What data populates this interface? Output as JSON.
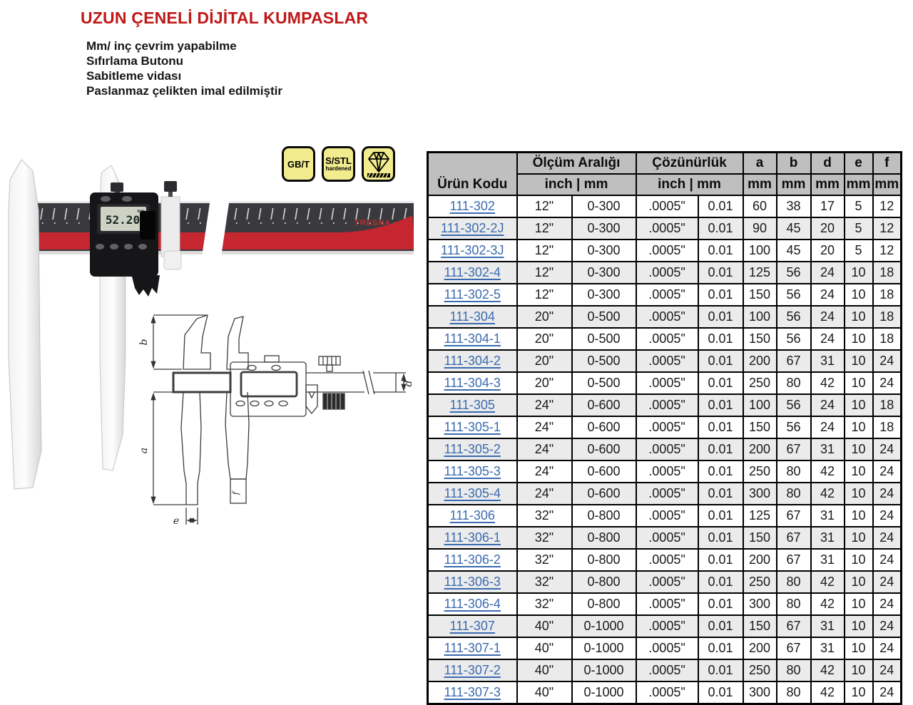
{
  "page": {
    "title": "UZUN ÇENELİ DİJİTAL KUMPASLAR",
    "features": [
      "Mm/ inç çevrim yapabilme",
      "Sıfırlama Butonu",
      "Sabitleme vidası",
      "Paslanmaz çelikten imal edilmiştir"
    ]
  },
  "badges": {
    "gbt": "GB/T",
    "sstl_line1": "S/STL",
    "sstl_line2": "hardened",
    "diamond_icon": "diamond"
  },
  "caliper": {
    "display_value": "52.20",
    "display_unit": "mm",
    "brand": "TRESNA"
  },
  "drawing": {
    "labels": {
      "a": "a",
      "b": "b",
      "d": "d",
      "e": "e",
      "f": "f"
    }
  },
  "table": {
    "header": {
      "product_code": "Ürün Kodu",
      "range": "Ölçüm Aralığı",
      "resolution": "Çözünürlük",
      "range_units": "inch | mm",
      "resolution_units": "inch | mm",
      "dims": [
        "a",
        "b",
        "d",
        "e",
        "f"
      ],
      "dim_unit": "mm"
    },
    "rows": [
      [
        "111-302",
        "12\"",
        "0-300",
        ".0005\"",
        "0.01",
        "60",
        "38",
        "17",
        "5",
        "12"
      ],
      [
        "111-302-2J",
        "12\"",
        "0-300",
        ".0005\"",
        "0.01",
        "90",
        "45",
        "20",
        "5",
        "12"
      ],
      [
        "111-302-3J",
        "12\"",
        "0-300",
        ".0005\"",
        "0.01",
        "100",
        "45",
        "20",
        "5",
        "12"
      ],
      [
        "111-302-4",
        "12\"",
        "0-300",
        ".0005\"",
        "0.01",
        "125",
        "56",
        "24",
        "10",
        "18"
      ],
      [
        "111-302-5",
        "12\"",
        "0-300",
        ".0005\"",
        "0.01",
        "150",
        "56",
        "24",
        "10",
        "18"
      ],
      [
        "111-304",
        "20\"",
        "0-500",
        ".0005\"",
        "0.01",
        "100",
        "56",
        "24",
        "10",
        "18"
      ],
      [
        "111-304-1",
        "20\"",
        "0-500",
        ".0005\"",
        "0.01",
        "150",
        "56",
        "24",
        "10",
        "18"
      ],
      [
        "111-304-2",
        "20\"",
        "0-500",
        ".0005\"",
        "0.01",
        "200",
        "67",
        "31",
        "10",
        "24"
      ],
      [
        "111-304-3",
        "20\"",
        "0-500",
        ".0005\"",
        "0.01",
        "250",
        "80",
        "42",
        "10",
        "24"
      ],
      [
        "111-305",
        "24\"",
        "0-600",
        ".0005\"",
        "0.01",
        "100",
        "56",
        "24",
        "10",
        "18"
      ],
      [
        "111-305-1",
        "24\"",
        "0-600",
        ".0005\"",
        "0.01",
        "150",
        "56",
        "24",
        "10",
        "18"
      ],
      [
        "111-305-2",
        "24\"",
        "0-600",
        ".0005\"",
        "0.01",
        "200",
        "67",
        "31",
        "10",
        "24"
      ],
      [
        "111-305-3",
        "24\"",
        "0-600",
        ".0005\"",
        "0.01",
        "250",
        "80",
        "42",
        "10",
        "24"
      ],
      [
        "111-305-4",
        "24\"",
        "0-600",
        ".0005\"",
        "0.01",
        "300",
        "80",
        "42",
        "10",
        "24"
      ],
      [
        "111-306",
        "32\"",
        "0-800",
        ".0005\"",
        "0.01",
        "125",
        "67",
        "31",
        "10",
        "24"
      ],
      [
        "111-306-1",
        "32\"",
        "0-800",
        ".0005\"",
        "0.01",
        "150",
        "67",
        "31",
        "10",
        "24"
      ],
      [
        "111-306-2",
        "32\"",
        "0-800",
        ".0005\"",
        "0.01",
        "200",
        "67",
        "31",
        "10",
        "24"
      ],
      [
        "111-306-3",
        "32\"",
        "0-800",
        ".0005\"",
        "0.01",
        "250",
        "80",
        "42",
        "10",
        "24"
      ],
      [
        "111-306-4",
        "32\"",
        "0-800",
        ".0005\"",
        "0.01",
        "300",
        "80",
        "42",
        "10",
        "24"
      ],
      [
        "111-307",
        "40\"",
        "0-1000",
        ".0005\"",
        "0.01",
        "150",
        "67",
        "31",
        "10",
        "24"
      ],
      [
        "111-307-1",
        "40\"",
        "0-1000",
        ".0005\"",
        "0.01",
        "200",
        "67",
        "31",
        "10",
        "24"
      ],
      [
        "111-307-2",
        "40\"",
        "0-1000",
        ".0005\"",
        "0.01",
        "250",
        "80",
        "42",
        "10",
        "24"
      ],
      [
        "111-307-3",
        "40\"",
        "0-1000",
        ".0005\"",
        "0.01",
        "300",
        "80",
        "42",
        "10",
        "24"
      ]
    ]
  },
  "colors": {
    "title_red": "#C01818",
    "link_blue": "#3B6BB0",
    "header_gray": "#BFBFBF",
    "stripe_gray": "#EBEBEB",
    "badge_yellow": "#F2EC8E",
    "beam_red": "#C5262F",
    "beam_dark": "#3A3A3E"
  }
}
